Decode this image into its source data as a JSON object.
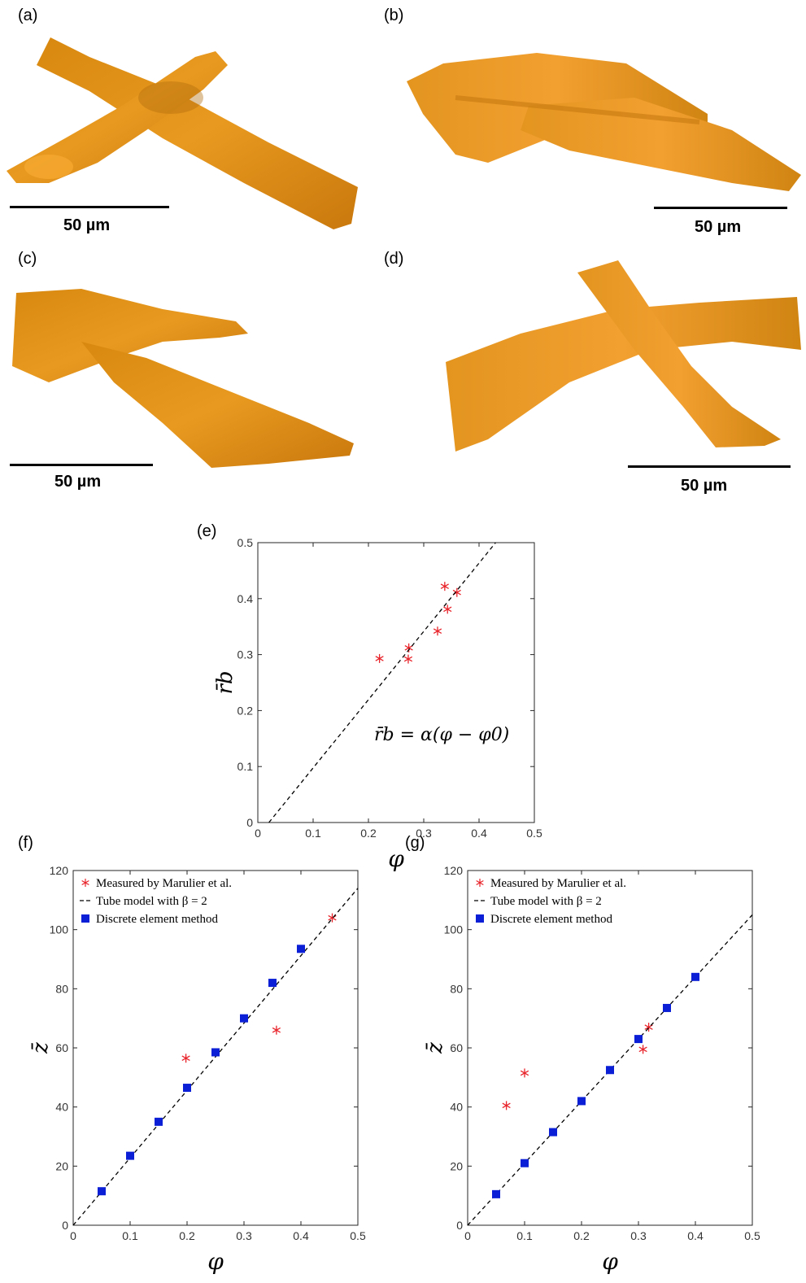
{
  "panels": {
    "a": {
      "label": "(a)",
      "scale": "50 µm"
    },
    "b": {
      "label": "(b)",
      "scale": "50 µm"
    },
    "c": {
      "label": "(c)",
      "scale": "50 µm"
    },
    "d": {
      "label": "(d)",
      "scale": "50 µm"
    },
    "e": {
      "label": "(e)"
    },
    "f": {
      "label": "(f)"
    },
    "g": {
      "label": "(g)"
    }
  },
  "colors": {
    "fiber": "#E8981A",
    "fiber_dark": "#B8720E",
    "measured": "#E8232A",
    "dem": "#0A1FD6"
  },
  "chart_data": [
    {
      "id": "e",
      "type": "scatter",
      "xlabel": "φ",
      "ylabel": "r̄b",
      "xlim": [
        0,
        0.5
      ],
      "ylim": [
        0,
        0.5
      ],
      "xticks": [
        "0",
        "0.1",
        "0.2",
        "0.3",
        "0.4",
        "0.5"
      ],
      "yticks": [
        "0",
        "0.1",
        "0.2",
        "0.3",
        "0.4",
        "0.5"
      ],
      "annotation": "r̄b = α(φ − φ0)",
      "series": [
        {
          "marker": "asterisk",
          "x": [
            0.22,
            0.272,
            0.273,
            0.325,
            0.338,
            0.343,
            0.36
          ],
          "y": [
            0.293,
            0.292,
            0.312,
            0.342,
            0.422,
            0.381,
            0.411
          ]
        },
        {
          "marker": "dashed-line",
          "x": [
            0.02,
            0.43
          ],
          "y": [
            0.0,
            0.5
          ]
        }
      ]
    },
    {
      "id": "f",
      "type": "scatter",
      "xlabel": "φ",
      "ylabel": "z̄",
      "xlim": [
        0,
        0.5
      ],
      "ylim": [
        0,
        120
      ],
      "xticks": [
        "0",
        "0.1",
        "0.2",
        "0.3",
        "0.4",
        "0.5"
      ],
      "yticks": [
        "0",
        "20",
        "40",
        "60",
        "80",
        "100",
        "120"
      ],
      "legend": [
        "Measured by Marulier et al.",
        "Tube model with β = 2",
        "Discrete element method"
      ],
      "series": [
        {
          "name": "Measured by Marulier et al.",
          "marker": "asterisk",
          "x": [
            0.198,
            0.357,
            0.455
          ],
          "y": [
            56.5,
            66,
            104
          ]
        },
        {
          "name": "Tube model with β = 2",
          "marker": "dashed-line",
          "x": [
            0,
            0.5
          ],
          "y": [
            0,
            114
          ]
        },
        {
          "name": "Discrete element method",
          "marker": "square",
          "x": [
            0.05,
            0.1,
            0.15,
            0.2,
            0.25,
            0.3,
            0.35,
            0.4
          ],
          "y": [
            11.5,
            23.5,
            35,
            46.5,
            58.5,
            70,
            82,
            93.5
          ]
        }
      ]
    },
    {
      "id": "g",
      "type": "scatter",
      "xlabel": "φ",
      "ylabel": "z̄",
      "xlim": [
        0,
        0.5
      ],
      "ylim": [
        0,
        120
      ],
      "xticks": [
        "0",
        "0.1",
        "0.2",
        "0.3",
        "0.4",
        "0.5"
      ],
      "yticks": [
        "0",
        "20",
        "40",
        "60",
        "80",
        "100",
        "120"
      ],
      "legend": [
        "Measured by Marulier et al.",
        "Tube model with β = 2",
        "Discrete element method"
      ],
      "series": [
        {
          "name": "Measured by Marulier et al.",
          "marker": "asterisk",
          "x": [
            0.068,
            0.1,
            0.308,
            0.318
          ],
          "y": [
            40.5,
            51.5,
            59.5,
            67
          ]
        },
        {
          "name": "Tube model with β = 2",
          "marker": "dashed-line",
          "x": [
            0,
            0.5
          ],
          "y": [
            0,
            105
          ]
        },
        {
          "name": "Discrete element method",
          "marker": "square",
          "x": [
            0.05,
            0.1,
            0.15,
            0.2,
            0.25,
            0.3,
            0.35,
            0.4
          ],
          "y": [
            10.5,
            21,
            31.5,
            42,
            52.5,
            63,
            73.5,
            84
          ]
        }
      ]
    }
  ]
}
